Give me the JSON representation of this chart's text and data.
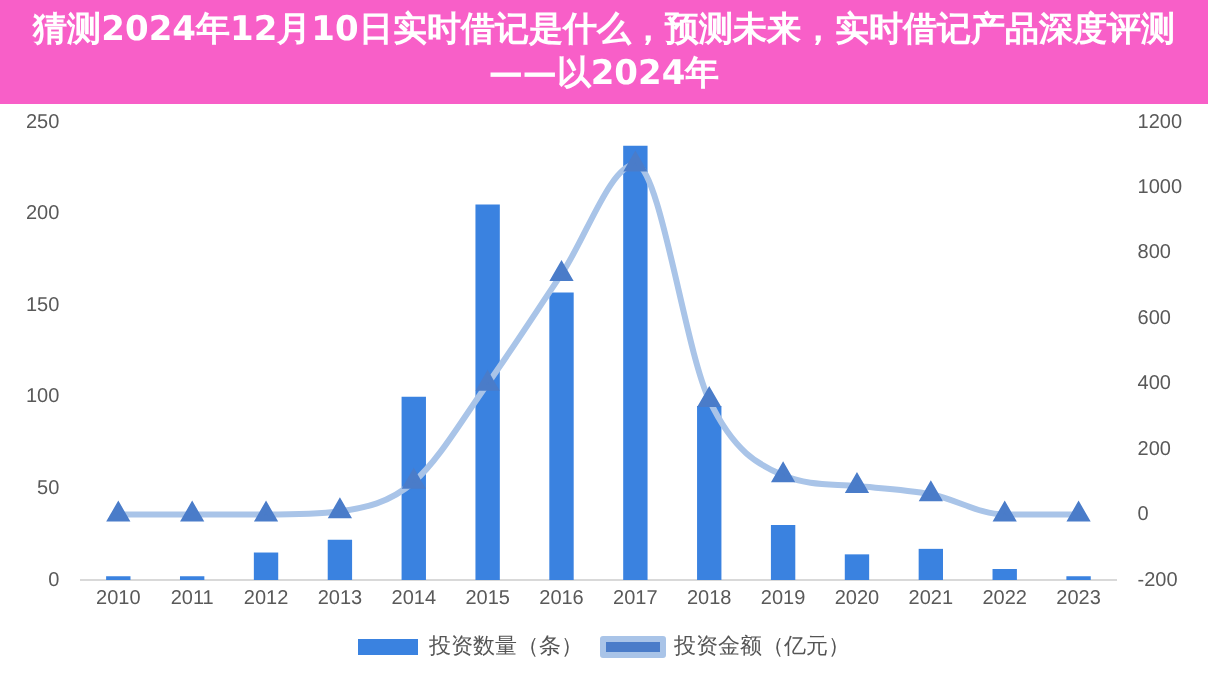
{
  "chart_data": {
    "type": "bar",
    "title": "猜测2024年12月10日实时借记是什么，预测未来，实时借记产品深度评测——以2024年",
    "categories": [
      "2010",
      "2011",
      "2012",
      "2013",
      "2014",
      "2015",
      "2016",
      "2017",
      "2018",
      "2019",
      "2020",
      "2021",
      "2022",
      "2023"
    ],
    "series": [
      {
        "name": "投资数量（条）",
        "color": "#3a82e0",
        "values": [
          2,
          2,
          15,
          22,
          100,
          205,
          157,
          237,
          95,
          30,
          14,
          17,
          6,
          2
        ]
      },
      {
        "name": "投资金额（亿元）",
        "type": "line",
        "axis": "y2",
        "color": "#a9c4e8",
        "values": [
          0,
          0,
          0,
          10,
          100,
          400,
          735,
          1070,
          350,
          120,
          87,
          62,
          0,
          0
        ]
      }
    ],
    "ylim": [
      0,
      250
    ],
    "yticks": [
      0,
      50,
      100,
      150,
      200,
      250
    ],
    "y2lim": [
      -200,
      1200
    ],
    "y2ticks": [
      -200,
      0,
      200,
      400,
      600,
      800,
      1000,
      1200
    ],
    "grid": false,
    "legend": "bottom",
    "marker": "triangle"
  }
}
